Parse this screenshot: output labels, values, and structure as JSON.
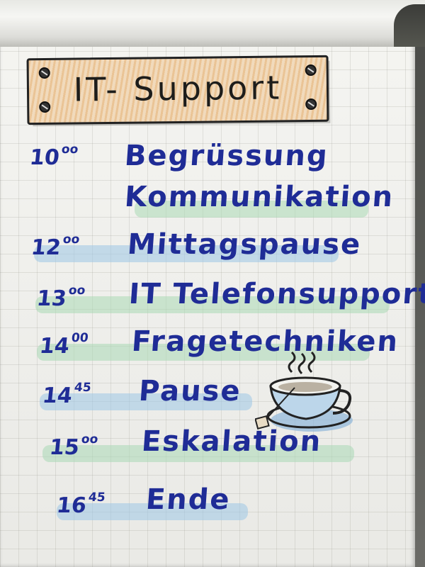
{
  "title": "IT- Support",
  "agenda": [
    {
      "hour": "10",
      "minutes": "oo",
      "item": "Begrüssung"
    },
    {
      "hour": "",
      "minutes": "",
      "item": "Kommunikation"
    },
    {
      "hour": "12",
      "minutes": "oo",
      "item": "Mittagspause"
    },
    {
      "hour": "13",
      "minutes": "oo",
      "item": "IT Telefonsupport"
    },
    {
      "hour": "14",
      "minutes": "00",
      "item": "Fragetechniken"
    },
    {
      "hour": "14",
      "minutes": "45",
      "item": "Pause"
    },
    {
      "hour": "15",
      "minutes": "oo",
      "item": "Eskalation"
    },
    {
      "hour": "16",
      "minutes": "45",
      "item": "Ende"
    }
  ],
  "colors": {
    "ink": "#1f2c96",
    "highlight_blue": "#9cc7e6",
    "highlight_green": "#a9d8b4",
    "sign_orange": "#e39a4b"
  }
}
